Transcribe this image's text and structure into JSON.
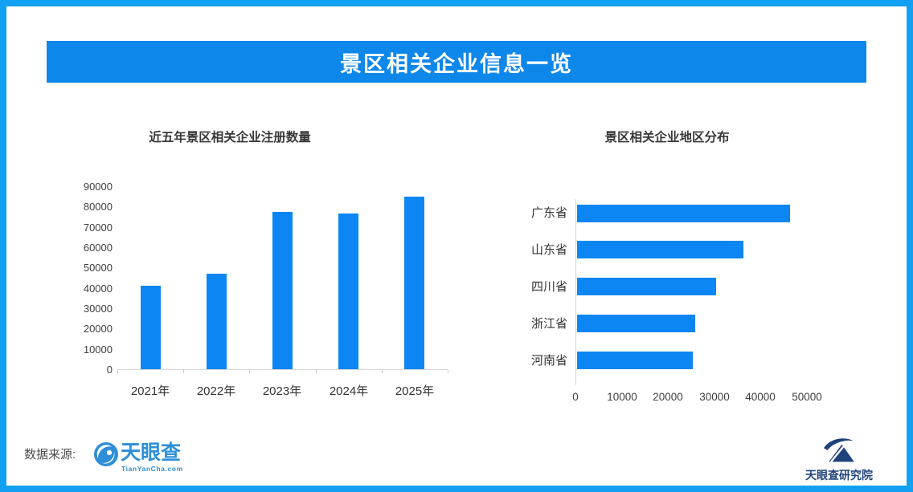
{
  "banner": {
    "title": "景区相关企业信息一览"
  },
  "chart_data": [
    {
      "type": "bar",
      "title": "近五年景区相关企业注册数量",
      "categories": [
        "2021年",
        "2022年",
        "2023年",
        "2024年",
        "2025年"
      ],
      "values": [
        41000,
        47000,
        77500,
        76500,
        85000
      ],
      "xlabel": "",
      "ylabel": "",
      "ylim": [
        0,
        90000
      ],
      "y_step": 10000,
      "y_ticks": [
        "0",
        "10000",
        "20000",
        "30000",
        "40000",
        "50000",
        "60000",
        "70000",
        "80000",
        "90000"
      ],
      "grid": false,
      "legend": "none",
      "bar_color": "#0B86F2"
    },
    {
      "type": "bar",
      "orientation": "horizontal",
      "title": "景区相关企业地区分布",
      "categories": [
        "广东省",
        "山东省",
        "四川省",
        "浙江省",
        "河南省"
      ],
      "values": [
        46000,
        36000,
        30000,
        25500,
        25000
      ],
      "xlabel": "",
      "ylabel": "",
      "xlim": [
        0,
        50000
      ],
      "x_step": 10000,
      "x_ticks": [
        "0",
        "10000",
        "20000",
        "30000",
        "40000",
        "50000"
      ],
      "grid": false,
      "legend": "none",
      "bar_color": "#0B86F2"
    }
  ],
  "footer": {
    "source_label": "数据来源:",
    "tianyancha": {
      "name": "天眼查",
      "domain": "TianYanCha.com"
    },
    "research": {
      "name": "天眼查研究院"
    }
  },
  "colors": {
    "frame": "#11A0F2",
    "banner": "#0E87EA",
    "bar": "#0B86F2",
    "tyc_blue": "#2E8FD8",
    "navy": "#20427C",
    "axis_line": "#d9d9d9"
  }
}
